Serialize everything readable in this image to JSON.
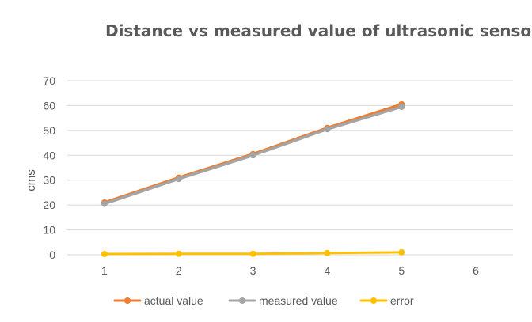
{
  "chart_data": {
    "type": "line",
    "title": "Distance vs measured value of ultrasonic sensor",
    "xlabel": "",
    "ylabel": "cms",
    "x_ticks": [
      "1",
      "2",
      "3",
      "4",
      "5",
      "6"
    ],
    "xlim": [
      0.5,
      6.5
    ],
    "ylim": [
      0,
      70
    ],
    "y_ticks": [
      "0",
      "10",
      "20",
      "30",
      "40",
      "50",
      "60",
      "70"
    ],
    "y_tick_values": [
      0,
      10,
      20,
      30,
      40,
      50,
      60,
      70
    ],
    "grid": true,
    "legend_position": "bottom",
    "x": [
      1,
      2,
      3,
      4,
      5
    ],
    "series": [
      {
        "name": "actual value",
        "color": "#ED7D31",
        "values": [
          21,
          31,
          40.5,
          51,
          60.5
        ]
      },
      {
        "name": "measured value",
        "color": "#A5A5A5",
        "values": [
          20.5,
          30.5,
          40,
          50.5,
          59.5
        ]
      },
      {
        "name": "error",
        "color": "#FFC000",
        "values": [
          0.3,
          0.4,
          0.4,
          0.7,
          1.0
        ]
      }
    ]
  }
}
